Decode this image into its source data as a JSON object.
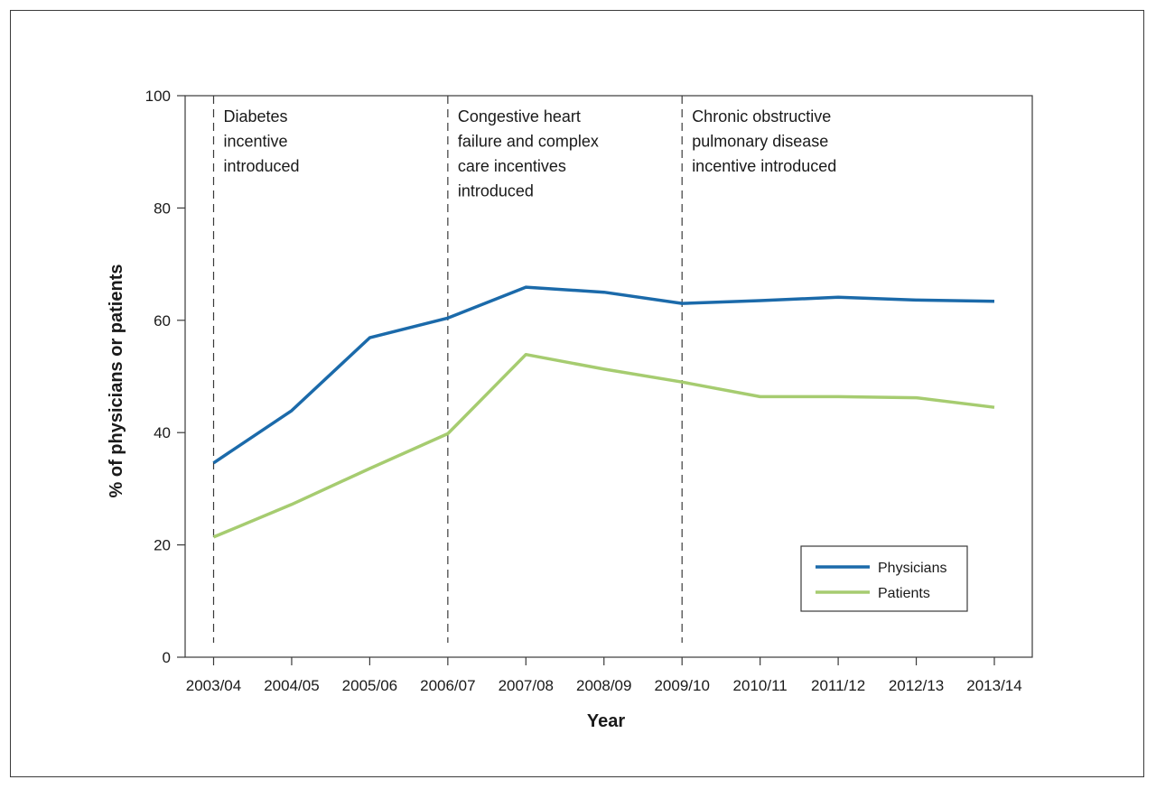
{
  "chart_data": {
    "type": "line",
    "title": "",
    "xlabel": "Year",
    "ylabel": "% of physicians or patients",
    "categories": [
      "2003/04",
      "2004/05",
      "2005/06",
      "2006/07",
      "2007/08",
      "2008/09",
      "2009/10",
      "2010/11",
      "2011/12",
      "2012/13",
      "2013/14"
    ],
    "ylim": [
      0,
      100
    ],
    "yticks": [
      0,
      20,
      40,
      60,
      80,
      100
    ],
    "grid": false,
    "legend_position": "bottom-right",
    "series": [
      {
        "name": "Physicians",
        "color": "#1b6aaa",
        "values": [
          34.6,
          43.9,
          56.9,
          60.4,
          65.9,
          65.0,
          63.0,
          63.5,
          64.1,
          63.6,
          63.4
        ]
      },
      {
        "name": "Patients",
        "color": "#a6cc70",
        "values": [
          21.4,
          27.2,
          33.6,
          39.8,
          53.9,
          51.3,
          49.0,
          46.4,
          46.4,
          46.2,
          44.5
        ]
      }
    ],
    "annotations": [
      {
        "at_category": "2003/04",
        "lines": [
          "Diabetes",
          "incentive",
          "introduced"
        ]
      },
      {
        "at_category": "2006/07",
        "lines": [
          "Congestive heart",
          "failure and complex",
          "care incentives",
          "introduced"
        ]
      },
      {
        "at_category": "2009/10",
        "lines": [
          "Chronic obstructive",
          "pulmonary disease",
          "incentive introduced"
        ]
      }
    ]
  }
}
